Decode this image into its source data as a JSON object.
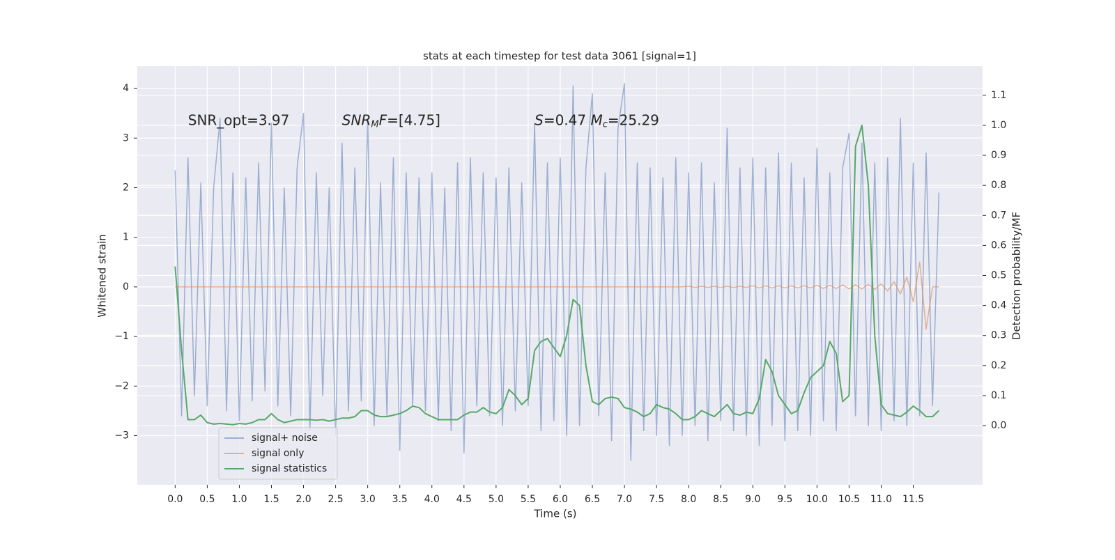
{
  "chart_data": {
    "type": "line",
    "title": "stats at each timestep for test data 3061 [signal=1]",
    "xlabel": "Time (s)",
    "ylabel": "Whitened strain",
    "y2label": "Detection probability/MF",
    "annotations": [
      {
        "x": 0.2,
        "y": 3.35,
        "parts": [
          {
            "text": "SNR_opt=3.97",
            "style": "normal"
          }
        ]
      },
      {
        "x": 2.6,
        "y": 3.35,
        "parts": [
          {
            "text": "SNR",
            "style": "italic"
          },
          {
            "text": "M",
            "style": "sub"
          },
          {
            "text": "F",
            "style": "italic"
          },
          {
            "text": "=[4.75]",
            "style": "normal"
          }
        ]
      },
      {
        "x": 5.6,
        "y": 3.35,
        "parts": [
          {
            "text": "S",
            "style": "italic"
          },
          {
            "text": "=0.47   ",
            "style": "normal"
          },
          {
            "text": "M",
            "style": "italic"
          },
          {
            "text": "c",
            "style": "sub"
          },
          {
            "text": "=25.29",
            "style": "normal"
          }
        ]
      }
    ],
    "x": [
      0,
      0.1,
      0.2,
      0.3,
      0.4,
      0.5,
      0.6,
      0.7,
      0.8,
      0.9,
      1,
      1.1,
      1.2,
      1.3,
      1.4,
      1.5,
      1.6,
      1.7,
      1.8,
      1.9,
      2,
      2.1,
      2.2,
      2.3,
      2.4,
      2.5,
      2.6,
      2.7,
      2.8,
      2.9,
      3,
      3.1,
      3.2,
      3.3,
      3.4,
      3.5,
      3.6,
      3.7,
      3.8,
      3.9,
      4,
      4.1,
      4.2,
      4.3,
      4.4,
      4.5,
      4.6,
      4.7,
      4.8,
      4.9,
      5,
      5.1,
      5.2,
      5.3,
      5.4,
      5.5,
      5.6,
      5.7,
      5.8,
      5.9,
      6,
      6.1,
      6.2,
      6.3,
      6.4,
      6.5,
      6.6,
      6.7,
      6.8,
      6.9,
      7,
      7.1,
      7.2,
      7.3,
      7.4,
      7.5,
      7.6,
      7.7,
      7.8,
      7.9,
      8,
      8.1,
      8.2,
      8.3,
      8.4,
      8.5,
      8.6,
      8.7,
      8.8,
      8.9,
      9,
      9.1,
      9.2,
      9.3,
      9.4,
      9.5,
      9.6,
      9.7,
      9.8,
      9.9,
      10,
      10.1,
      10.2,
      10.3,
      10.4,
      10.5,
      10.6,
      10.7,
      10.8,
      10.9,
      11,
      11.1,
      11.2,
      11.3,
      11.4,
      11.5,
      11.6,
      11.7,
      11.8,
      11.9
    ],
    "series": [
      {
        "name": "signal+ noise",
        "color": "#4c72b0",
        "opacity": 0.5,
        "axis": "y",
        "values": [
          2.35,
          -2.6,
          2.6,
          -2.2,
          2.1,
          -2.4,
          2.0,
          3.4,
          -2.5,
          2.3,
          -2.7,
          2.2,
          -2.3,
          2.5,
          -2.1,
          3.3,
          -2.4,
          2.0,
          -2.6,
          2.4,
          3.5,
          -2.9,
          2.3,
          -2.2,
          2.0,
          -3.0,
          2.9,
          -2.5,
          2.4,
          -2.3,
          3.4,
          -2.8,
          2.1,
          -2.6,
          2.6,
          -3.3,
          2.3,
          -2.4,
          2.2,
          -2.5,
          2.3,
          -2.7,
          2.0,
          -2.9,
          2.5,
          -3.35,
          2.6,
          -2.4,
          2.3,
          -2.6,
          2.2,
          -2.8,
          2.4,
          -2.5,
          2.1,
          -2.4,
          3.3,
          -2.9,
          2.5,
          -2.7,
          2.6,
          -3.0,
          4.05,
          -2.8,
          2.4,
          3.9,
          -2.6,
          2.3,
          -3.1,
          3.2,
          4.1,
          -3.5,
          2.5,
          -2.9,
          2.4,
          -3.0,
          2.2,
          -3.2,
          2.6,
          -3.0,
          2.3,
          -2.8,
          2.5,
          -3.1,
          2.1,
          -2.7,
          3.2,
          -2.9,
          2.4,
          -3.0,
          2.6,
          -3.2,
          2.4,
          -2.8,
          2.7,
          -3.1,
          2.5,
          -2.9,
          2.2,
          -3.0,
          2.8,
          -2.7,
          2.3,
          -2.9,
          2.4,
          3.1,
          -2.6,
          2.9,
          -2.8,
          2.5,
          -2.9,
          2.6,
          -2.7,
          3.4,
          -2.8,
          2.5,
          -2.6,
          2.7,
          -2.4,
          1.9
        ]
      },
      {
        "name": "signal only",
        "color": "#dd8452",
        "opacity": 0.6,
        "axis": "y",
        "values": [
          0,
          0,
          0,
          0,
          0,
          0,
          0,
          0,
          0,
          0,
          0,
          0,
          0,
          0,
          0,
          0,
          0,
          0,
          0,
          0,
          0,
          0,
          0,
          0,
          0,
          0,
          0,
          0,
          0,
          0,
          0,
          0,
          0,
          0,
          0,
          0,
          0,
          0,
          0,
          0,
          0,
          0,
          0,
          0,
          0,
          0,
          0,
          0,
          0,
          0,
          0,
          0,
          0,
          0,
          0,
          0,
          0,
          0,
          0,
          0,
          0,
          0,
          0,
          0,
          0,
          0,
          0,
          0,
          0,
          0,
          0,
          0,
          0,
          0,
          0,
          0,
          0,
          0,
          0,
          0,
          0.01,
          -0.01,
          0.01,
          -0.01,
          0.01,
          -0.01,
          0.01,
          -0.01,
          0.01,
          -0.01,
          0.02,
          -0.02,
          0.02,
          -0.02,
          0.02,
          -0.02,
          0.02,
          -0.02,
          0.02,
          -0.02,
          0.03,
          -0.03,
          0.03,
          -0.03,
          0.04,
          -0.04,
          0.04,
          -0.04,
          0.05,
          -0.05,
          0.06,
          -0.08,
          0.1,
          -0.14,
          0.2,
          -0.3,
          0.5,
          -0.85,
          0,
          0
        ]
      },
      {
        "name": "signal statistics",
        "color": "#55a868",
        "opacity": 1,
        "axis": "y2",
        "values": [
          0.53,
          0.25,
          0.02,
          0.02,
          0.035,
          0.01,
          0.005,
          0.007,
          0.005,
          0.003,
          0.007,
          0.005,
          0.01,
          0.02,
          0.02,
          0.04,
          0.02,
          0.01,
          0.015,
          0.02,
          0.02,
          0.02,
          0.018,
          0.02,
          0.015,
          0.02,
          0.025,
          0.025,
          0.03,
          0.05,
          0.05,
          0.035,
          0.03,
          0.03,
          0.035,
          0.04,
          0.05,
          0.065,
          0.06,
          0.04,
          0.03,
          0.02,
          0.02,
          0.02,
          0.02,
          0.035,
          0.045,
          0.045,
          0.06,
          0.045,
          0.04,
          0.06,
          0.12,
          0.1,
          0.07,
          0.09,
          0.25,
          0.28,
          0.29,
          0.26,
          0.23,
          0.3,
          0.42,
          0.4,
          0.2,
          0.08,
          0.07,
          0.09,
          0.095,
          0.09,
          0.06,
          0.055,
          0.045,
          0.03,
          0.04,
          0.07,
          0.06,
          0.055,
          0.04,
          0.02,
          0.02,
          0.03,
          0.05,
          0.04,
          0.03,
          0.05,
          0.07,
          0.04,
          0.035,
          0.045,
          0.04,
          0.09,
          0.22,
          0.18,
          0.1,
          0.07,
          0.04,
          0.05,
          0.11,
          0.16,
          0.18,
          0.2,
          0.28,
          0.24,
          0.08,
          0.1,
          0.93,
          1.0,
          0.8,
          0.3,
          0.07,
          0.04,
          0.035,
          0.03,
          0.045,
          0.065,
          0.05,
          0.03,
          0.03,
          0.05
        ]
      }
    ],
    "xlim": [
      -0.59,
      12.58
    ],
    "ylim": [
      -3.99,
      4.45
    ],
    "y2lim": [
      -0.197,
      1.197
    ],
    "xticks": [
      {
        "value": 0,
        "label": "0.0"
      },
      0.5,
      {
        "value": 1,
        "label": "1.0"
      },
      1.5,
      {
        "value": 2,
        "label": "2.0"
      },
      2.5,
      {
        "value": 3,
        "label": "3.0"
      },
      3.5,
      {
        "value": 4,
        "label": "4.0"
      },
      4.5,
      {
        "value": 5,
        "label": "5.0"
      },
      5.5,
      {
        "value": 6,
        "label": "6.0"
      },
      6.5,
      {
        "value": 7,
        "label": "7.0"
      },
      7.5,
      {
        "value": 8,
        "label": "8.0"
      },
      8.5,
      {
        "value": 9,
        "label": "9.0"
      },
      9.5,
      {
        "value": 10,
        "label": "10.0"
      },
      10.5,
      {
        "value": 11,
        "label": "11.0"
      },
      11.5
    ],
    "yticks": [
      {
        "value": -3,
        "label": "−3"
      },
      {
        "value": -2,
        "label": "−2"
      },
      {
        "value": -1,
        "label": "−1"
      },
      0,
      1,
      2,
      3,
      4
    ],
    "y2ticks": [
      {
        "value": 0,
        "label": "0.0"
      },
      0.1,
      0.2,
      0.3,
      0.4,
      0.5,
      0.6,
      0.7,
      0.8,
      0.9,
      {
        "value": 1,
        "label": "1.0"
      },
      1.1
    ],
    "grid": true,
    "legend": "lower left"
  }
}
